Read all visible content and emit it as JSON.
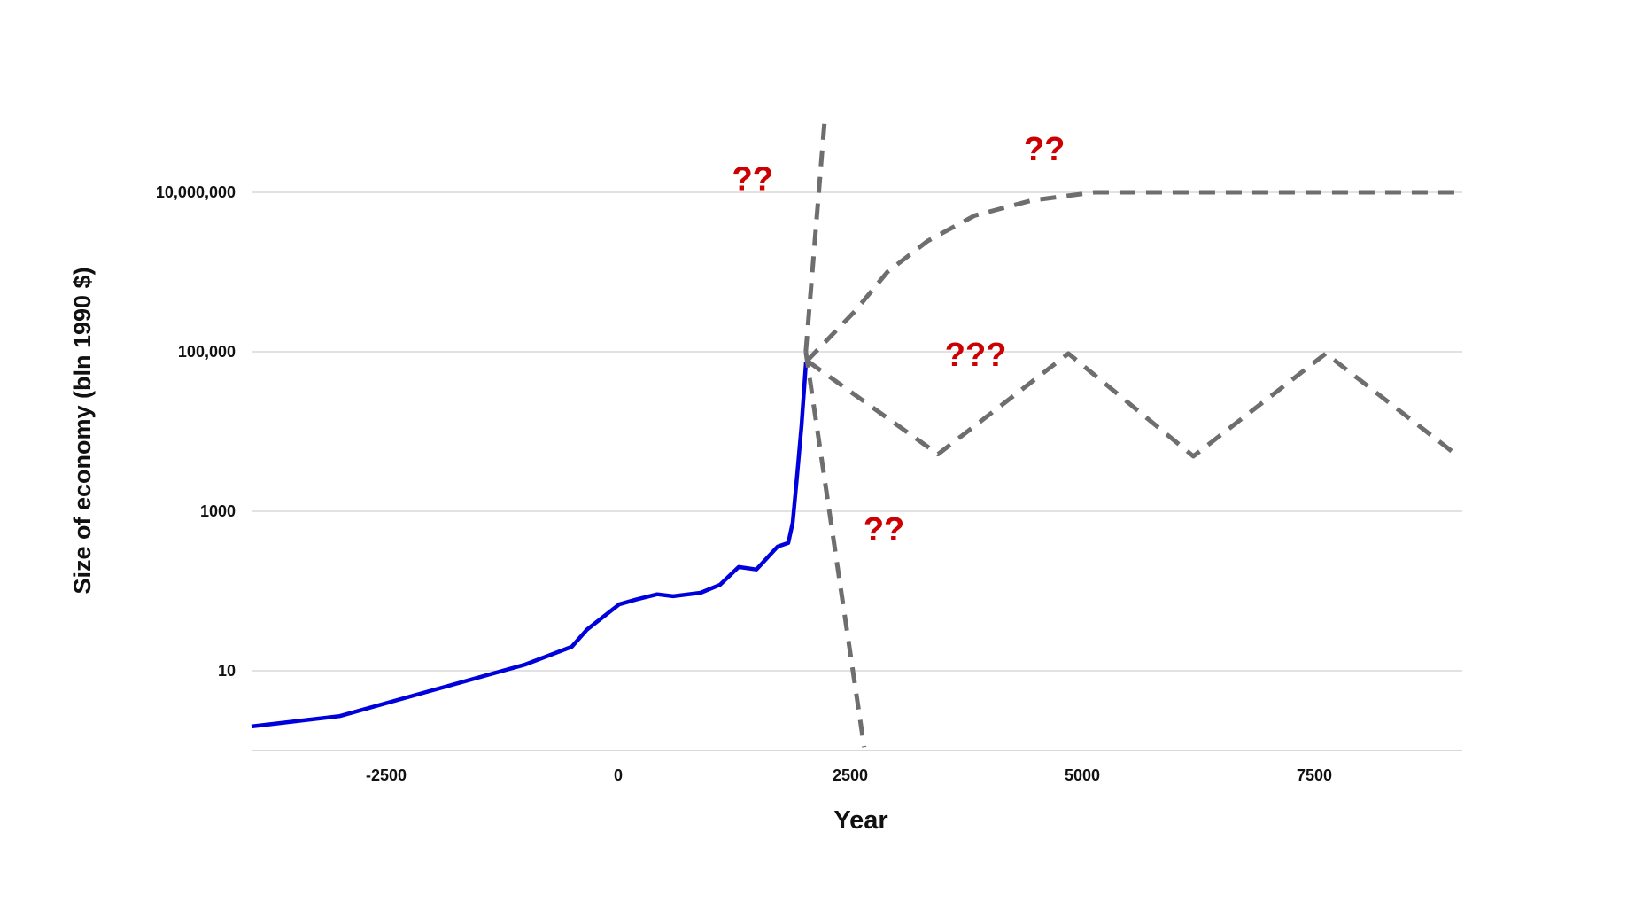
{
  "chart_data": {
    "type": "line",
    "title": "",
    "xlabel": "Year",
    "ylabel": "Size of economy (bln 1990 $)",
    "xlim": [
      -4000,
      9100
    ],
    "ylim": [
      1,
      100000000
    ],
    "yscale": "log",
    "grid": true,
    "x_ticks": [
      -2500,
      0,
      2500,
      5000,
      7500
    ],
    "x_tick_labels": [
      "-2500",
      "0",
      "2500",
      "5000",
      "7500"
    ],
    "y_ticks": [
      10,
      1000,
      100000,
      10000000
    ],
    "y_tick_labels": [
      "10",
      "1000",
      "100,000",
      "10,000,000"
    ],
    "colors": {
      "historical": "#0000dd",
      "projection": "#6e6e6e",
      "annotation": "#cc0000",
      "grid": "#d9d9d9"
    },
    "series": [
      {
        "style": "solid",
        "x": [
          -3950,
          -3000,
          -2000,
          -1000,
          -500,
          -334,
          10,
          190,
          420,
          592,
          887,
          1097,
          1298,
          1489,
          1718,
          1832,
          1880,
          1927,
          1975,
          2023
        ],
        "y": [
          2.0,
          2.7,
          5.7,
          12,
          20,
          33,
          68,
          78,
          91,
          86,
          95,
          120,
          200,
          186,
          360,
          400,
          720,
          2750,
          12000,
          74000
        ]
      },
      {
        "style": "dashed",
        "x": [
          2021,
          2223
        ],
        "y": [
          100000,
          78000000
        ]
      },
      {
        "style": "dashed",
        "x": [
          2021,
          2650
        ],
        "y": [
          100000,
          1.1
        ]
      },
      {
        "style": "dashed",
        "x": [
          2030,
          2548,
          2900,
          3334,
          3840,
          4457,
          5130,
          9060
        ],
        "y": [
          76000,
          320000,
          1000000,
          2450000,
          5100000,
          7900000,
          10000000,
          10000000
        ]
      },
      {
        "style": "dashed",
        "x": [
          2043,
          3446,
          4850,
          6197,
          7623,
          9003
        ],
        "y": [
          76000,
          5200,
          95000,
          4900,
          95000,
          5400
        ]
      }
    ],
    "annotations": [
      {
        "text": "??",
        "x": 1448,
        "y": 10700000
      },
      {
        "text": "??",
        "x": 4591,
        "y": 25000000
      },
      {
        "text": "???",
        "x": 3851,
        "y": 66000
      },
      {
        "text": "??",
        "x": 2863,
        "y": 430
      }
    ]
  }
}
